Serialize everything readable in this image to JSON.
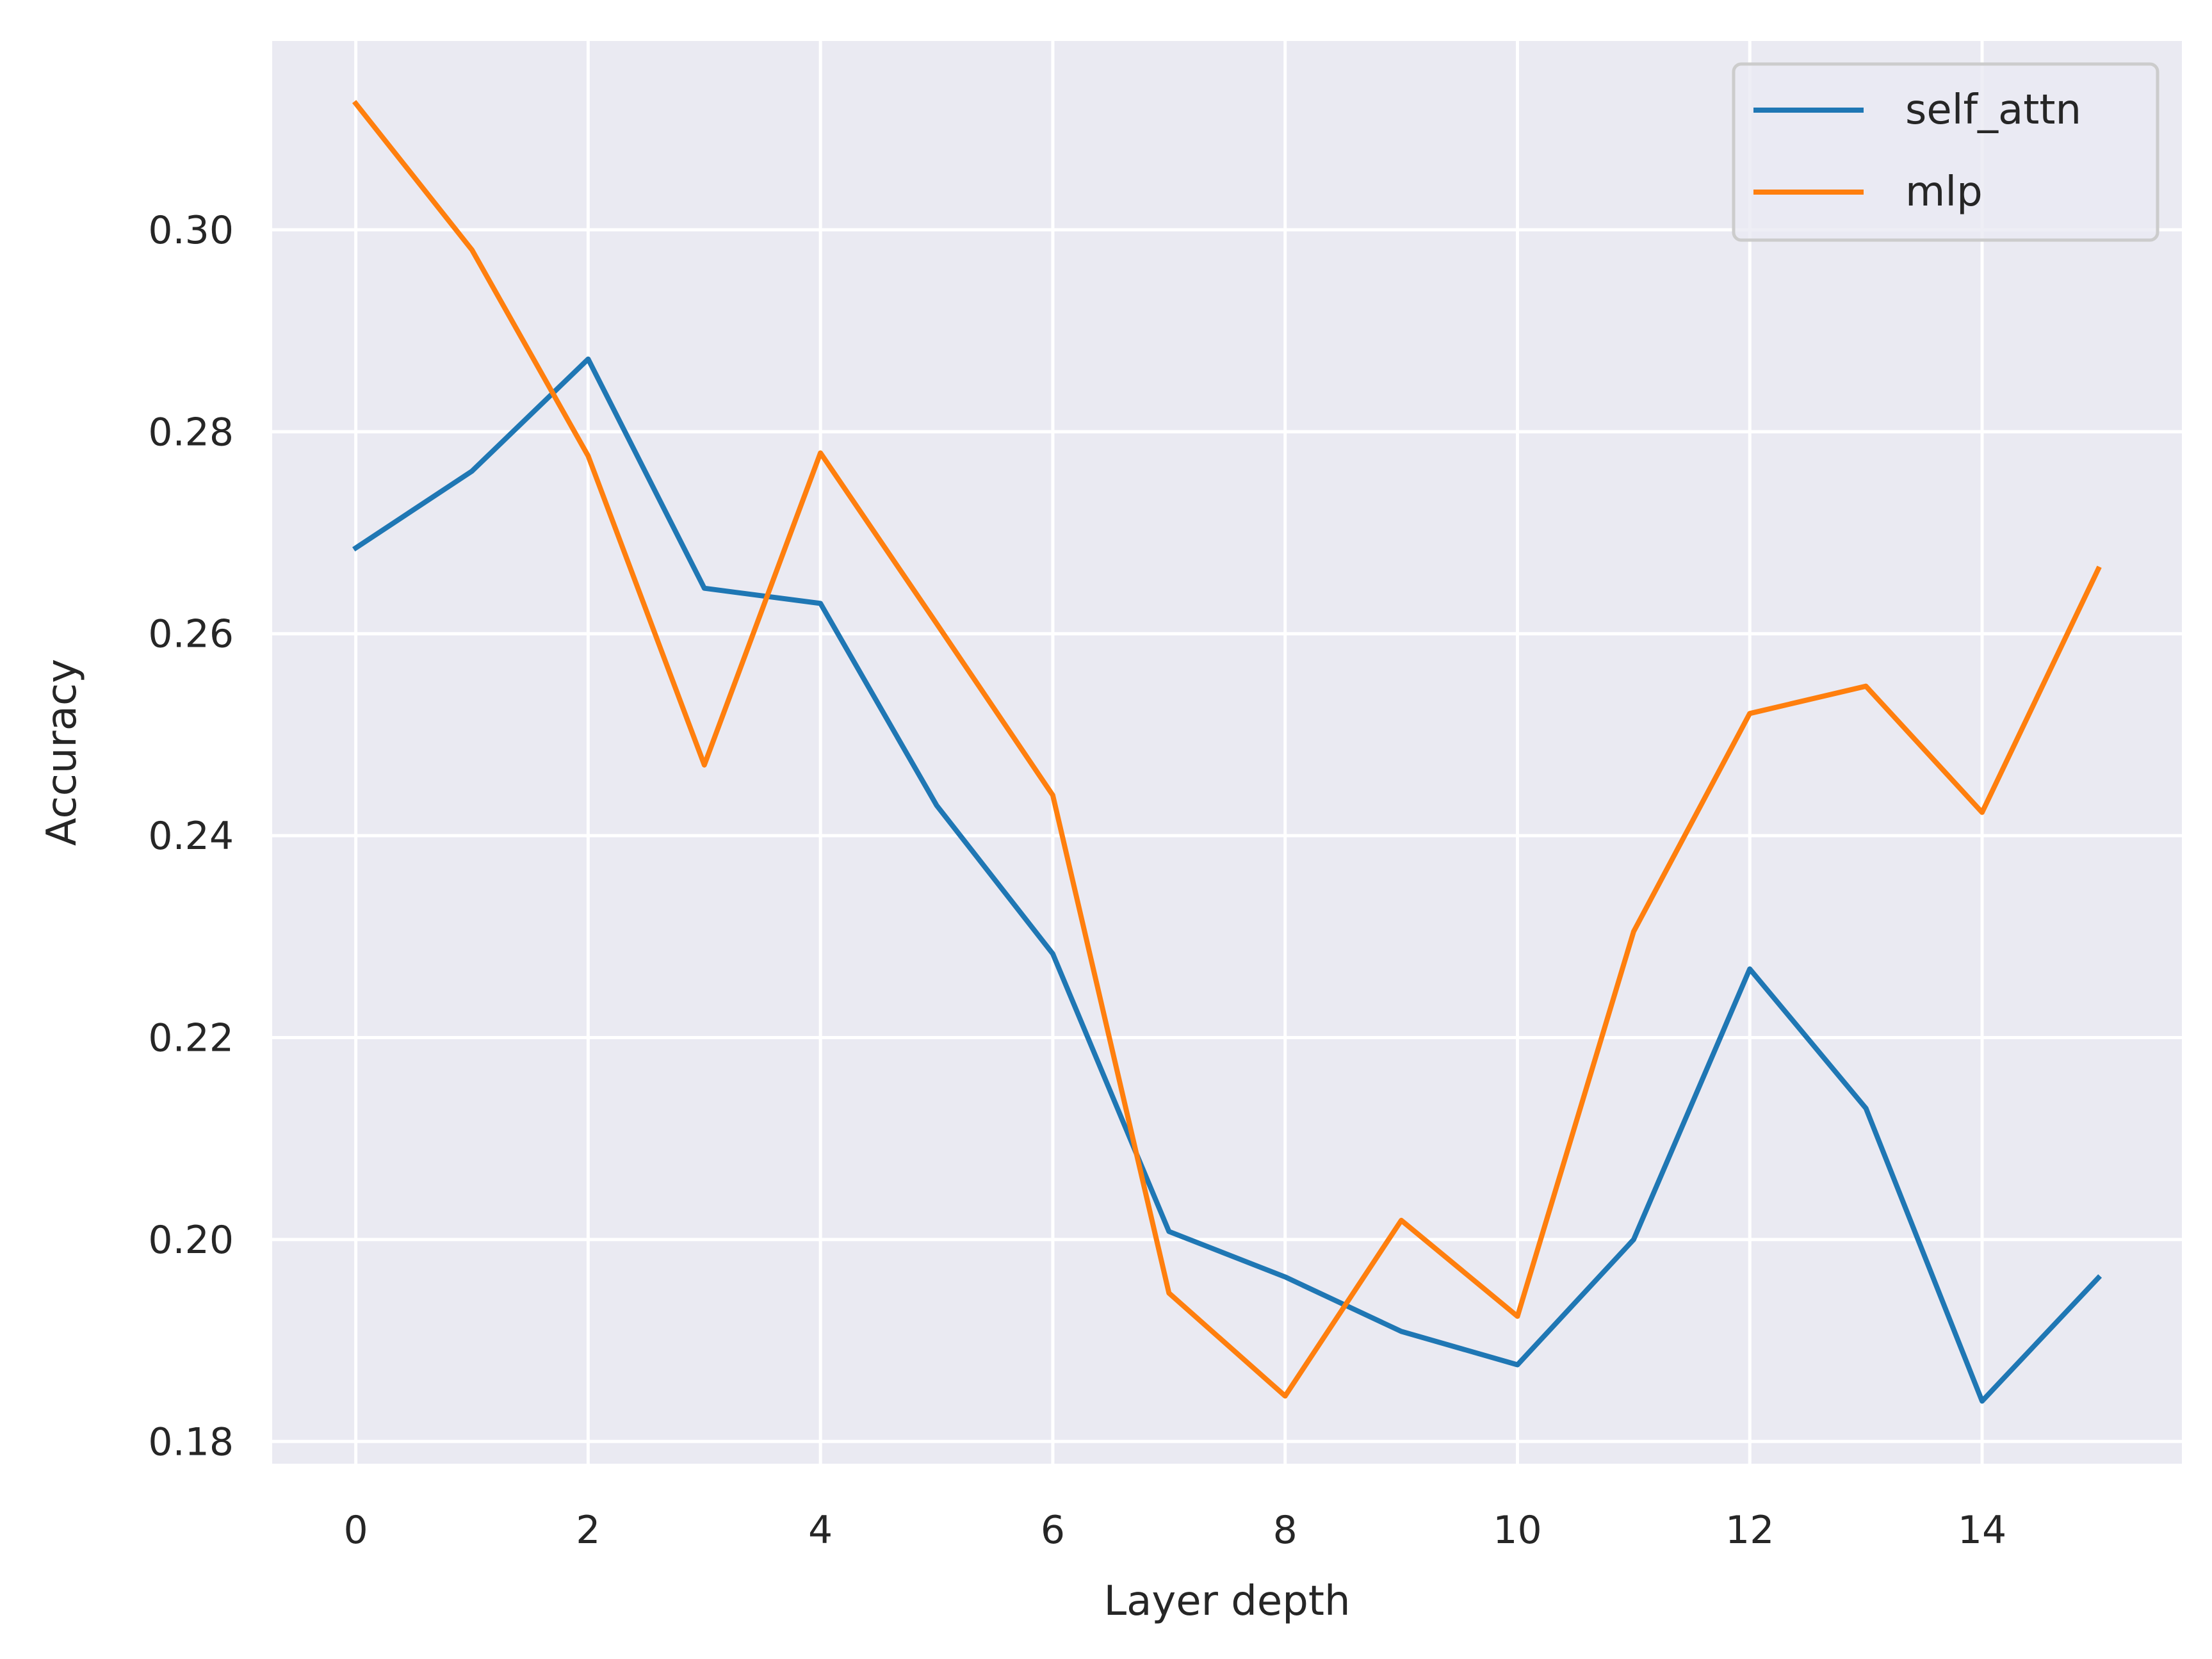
{
  "chart_data": {
    "type": "line",
    "title": "",
    "xlabel": "Layer depth",
    "ylabel": "Accuracy",
    "x": [
      0,
      1,
      2,
      3,
      4,
      5,
      6,
      7,
      8,
      9,
      10,
      11,
      12,
      13,
      14,
      15
    ],
    "xticks": [
      "0",
      "2",
      "4",
      "6",
      "8",
      "10",
      "12",
      "14"
    ],
    "yticks": [
      "0.18",
      "0.20",
      "0.22",
      "0.24",
      "0.26",
      "0.28",
      "0.30"
    ],
    "xlim": [
      -0.72,
      15.72
    ],
    "ylim": [
      0.1778,
      0.3187
    ],
    "grid": true,
    "legend_position": "top-right",
    "series": [
      {
        "name": "self_attn",
        "color": "#1f77b4",
        "values": [
          0.2685,
          0.2761,
          0.2872,
          0.2645,
          0.263,
          0.243,
          0.2283,
          0.2008,
          0.1963,
          0.1909,
          0.1876,
          0.2,
          0.2268,
          0.213,
          0.184,
          0.1962
        ]
      },
      {
        "name": "mlp",
        "color": "#ff7f0e",
        "values": [
          0.3125,
          0.298,
          0.2776,
          0.247,
          0.2779,
          0.261,
          0.244,
          0.1947,
          0.1845,
          0.2019,
          0.1924,
          0.2305,
          0.2521,
          0.2548,
          0.2423,
          0.2664
        ]
      }
    ],
    "colors": {
      "background": "#eaeaf2",
      "grid": "#ffffff",
      "text": "#262626"
    }
  }
}
